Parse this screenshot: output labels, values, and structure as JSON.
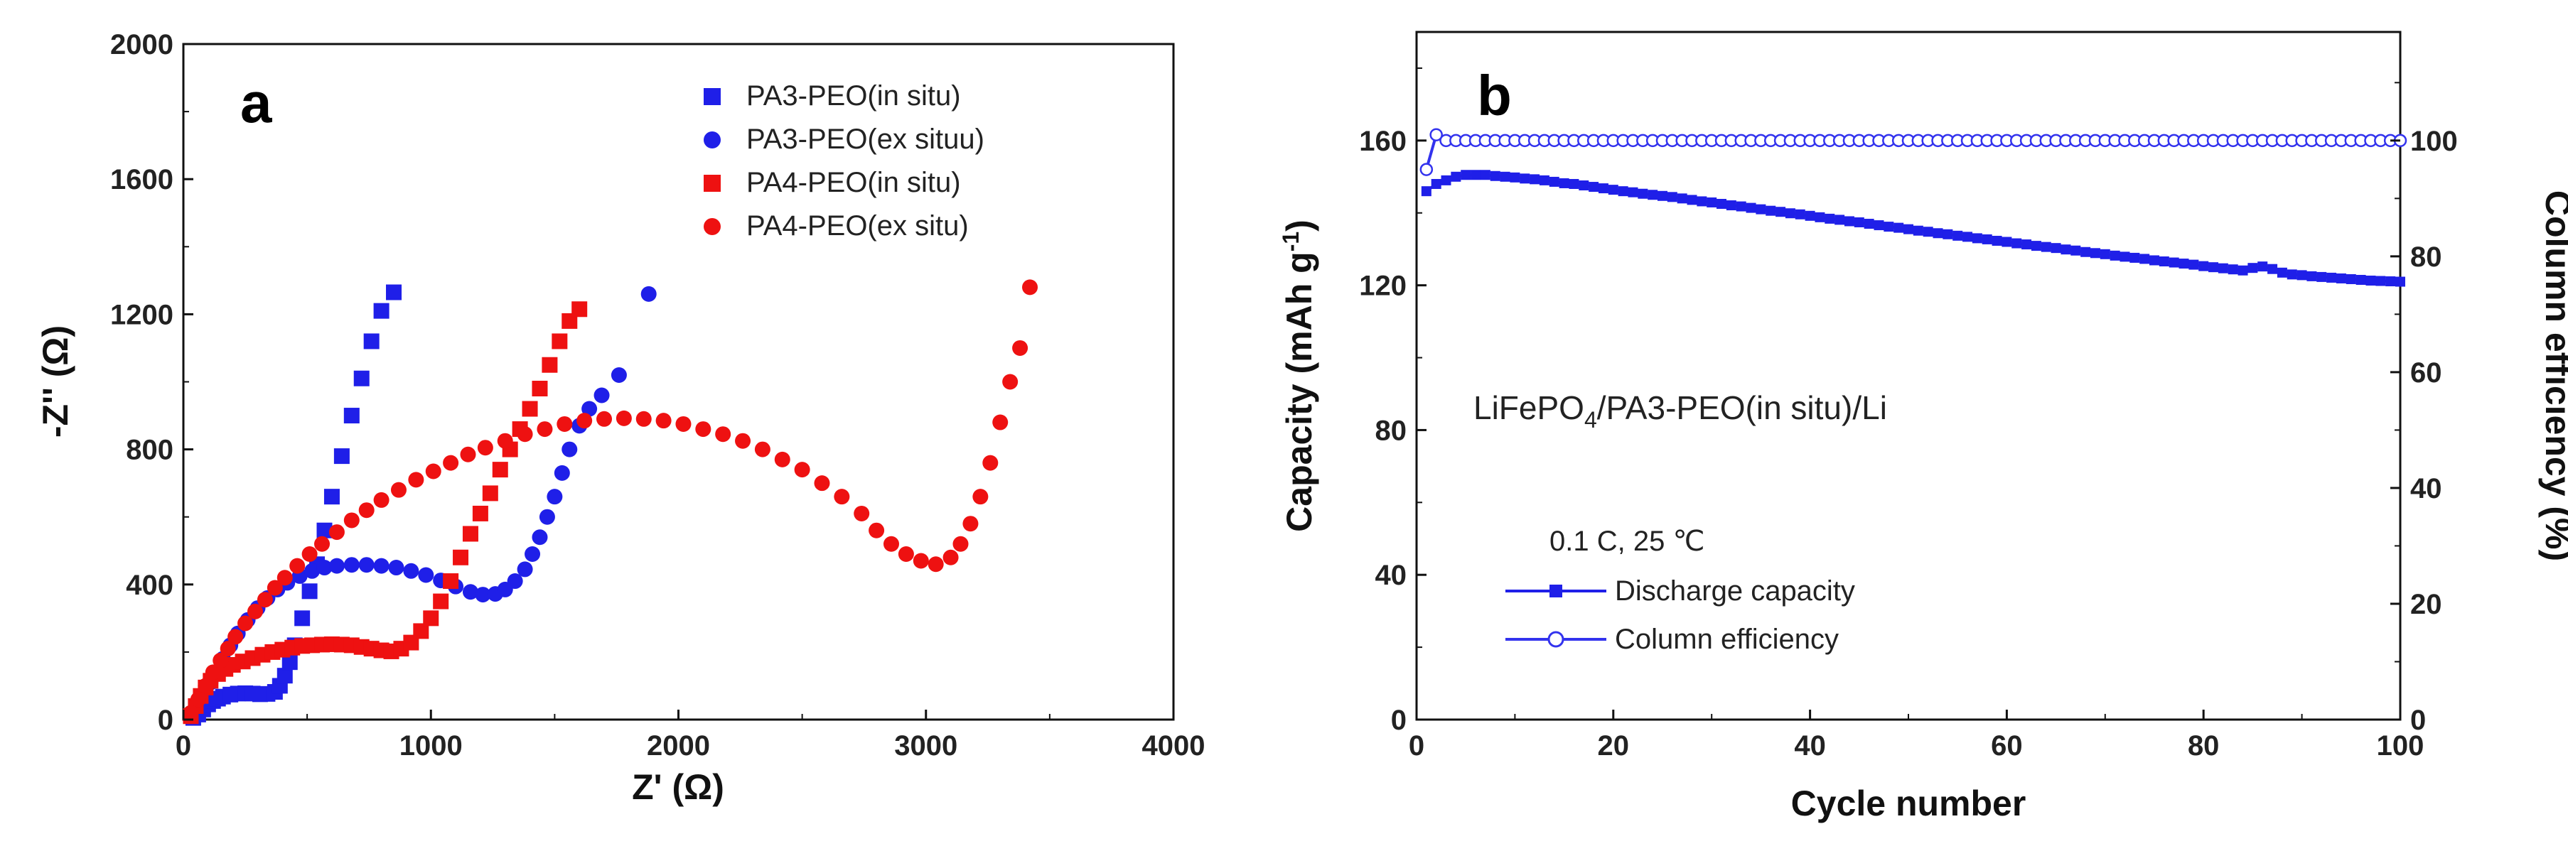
{
  "chart_data": [
    {
      "type": "scatter",
      "panel_label": "a",
      "xlabel": "Z' (Ω)",
      "ylabel": "-Z'' (Ω)",
      "xlim": [
        0,
        4000
      ],
      "ylim": [
        0,
        2000
      ],
      "xticks": [
        "0",
        "1000",
        "2000",
        "3000",
        "4000"
      ],
      "yticks": [
        "0",
        "400",
        "800",
        "1200",
        "1600",
        "2000"
      ],
      "legend_position": "top-right",
      "series": [
        {
          "name": "PA3-PEO(in situ)",
          "color": "#1f1fe8",
          "marker": "square",
          "x": [
            40,
            60,
            80,
            100,
            120,
            140,
            160,
            190,
            220,
            250,
            280,
            310,
            340,
            370,
            390,
            410,
            430,
            450,
            480,
            510,
            540,
            570,
            600,
            640,
            680,
            720,
            760,
            800,
            850
          ],
          "y": [
            5,
            15,
            30,
            45,
            55,
            62,
            68,
            74,
            77,
            78,
            77,
            75,
            76,
            82,
            100,
            130,
            170,
            220,
            300,
            380,
            460,
            560,
            660,
            780,
            900,
            1010,
            1120,
            1210,
            1265
          ]
        },
        {
          "name": "PA3-PEO(ex situu)",
          "color": "#1f1fe8",
          "marker": "circle",
          "x": [
            50,
            70,
            90,
            110,
            130,
            160,
            190,
            220,
            260,
            300,
            340,
            380,
            420,
            470,
            520,
            570,
            620,
            680,
            740,
            800,
            860,
            920,
            980,
            1040,
            1100,
            1160,
            1210,
            1260,
            1300,
            1340,
            1380,
            1410,
            1440,
            1470,
            1500,
            1530,
            1560,
            1600,
            1640,
            1690,
            1760,
            1880
          ],
          "y": [
            20,
            50,
            80,
            110,
            140,
            180,
            220,
            255,
            295,
            330,
            360,
            385,
            405,
            425,
            440,
            450,
            455,
            458,
            458,
            455,
            450,
            440,
            428,
            412,
            394,
            378,
            370,
            372,
            385,
            410,
            445,
            490,
            540,
            600,
            660,
            730,
            800,
            870,
            920,
            960,
            1020,
            1260
          ]
        },
        {
          "name": "PA4-PEO(in situ)",
          "color": "#ee1111",
          "marker": "square",
          "x": [
            30,
            50,
            70,
            90,
            110,
            140,
            170,
            200,
            240,
            280,
            320,
            360,
            400,
            440,
            480,
            520,
            560,
            600,
            640,
            680,
            720,
            760,
            800,
            840,
            880,
            920,
            960,
            1000,
            1040,
            1080,
            1120,
            1160,
            1200,
            1240,
            1280,
            1320,
            1360,
            1400,
            1440,
            1480,
            1520,
            1560,
            1600
          ],
          "y": [
            10,
            40,
            70,
            95,
            115,
            135,
            150,
            162,
            172,
            182,
            192,
            200,
            207,
            213,
            218,
            220,
            222,
            223,
            222,
            220,
            215,
            210,
            205,
            202,
            210,
            228,
            262,
            300,
            350,
            410,
            480,
            550,
            610,
            670,
            740,
            800,
            860,
            920,
            980,
            1050,
            1120,
            1180,
            1215
          ]
        },
        {
          "name": "PA4-PEO(ex situ)",
          "color": "#ee1111",
          "marker": "circle",
          "x": [
            30,
            60,
            90,
            120,
            150,
            180,
            210,
            250,
            290,
            330,
            370,
            410,
            460,
            510,
            560,
            620,
            680,
            740,
            800,
            870,
            940,
            1010,
            1080,
            1150,
            1220,
            1300,
            1380,
            1460,
            1540,
            1620,
            1700,
            1780,
            1860,
            1940,
            2020,
            2100,
            2180,
            2260,
            2340,
            2420,
            2500,
            2580,
            2660,
            2740,
            2800,
            2860,
            2920,
            2980,
            3040,
            3100,
            3140,
            3180,
            3220,
            3260,
            3300,
            3340,
            3380,
            3420
          ],
          "y": [
            20,
            60,
            100,
            140,
            175,
            210,
            245,
            285,
            320,
            355,
            390,
            420,
            455,
            490,
            520,
            555,
            590,
            620,
            650,
            680,
            710,
            735,
            760,
            785,
            805,
            825,
            845,
            860,
            875,
            885,
            890,
            892,
            890,
            885,
            875,
            860,
            845,
            825,
            800,
            770,
            740,
            700,
            660,
            610,
            560,
            520,
            490,
            470,
            460,
            480,
            520,
            580,
            660,
            760,
            880,
            1000,
            1100,
            1280
          ]
        }
      ]
    },
    {
      "type": "line",
      "panel_label": "b",
      "xlabel": "Cycle number",
      "ylabel": "Capacity (mAh g-1)",
      "ylabel_parts": [
        "Capacity (mAh g",
        "-1",
        ")"
      ],
      "y2label": "Column efficiency (%)",
      "xlim": [
        0,
        100
      ],
      "ylim": [
        0,
        190
      ],
      "y2lim": [
        0,
        118.75
      ],
      "xticks": [
        "0",
        "20",
        "40",
        "60",
        "80",
        "100"
      ],
      "yticks": [
        "0",
        "40",
        "80",
        "120",
        "160"
      ],
      "y2ticks": [
        "0",
        "20",
        "40",
        "60",
        "80",
        "100"
      ],
      "annotation": "LiFePO4/PA3-PEO(in situ)/Li",
      "annotation_parts": [
        "LiFePO",
        "4",
        "/PA3-PEO(in situ)/Li"
      ],
      "condition": "0.1 C, 25 ℃",
      "legend_position": "bottom-left",
      "series": [
        {
          "name": "Discharge capacity",
          "color": "#1f1fe8",
          "marker": "filled-square",
          "axis": "left",
          "x": [
            1,
            2,
            3,
            4,
            5,
            6,
            7,
            8,
            9,
            10,
            11,
            12,
            13,
            14,
            15,
            16,
            17,
            18,
            19,
            20,
            21,
            22,
            23,
            24,
            25,
            26,
            27,
            28,
            29,
            30,
            31,
            32,
            33,
            34,
            35,
            36,
            37,
            38,
            39,
            40,
            41,
            42,
            43,
            44,
            45,
            46,
            47,
            48,
            49,
            50,
            51,
            52,
            53,
            54,
            55,
            56,
            57,
            58,
            59,
            60,
            61,
            62,
            63,
            64,
            65,
            66,
            67,
            68,
            69,
            70,
            71,
            72,
            73,
            74,
            75,
            76,
            77,
            78,
            79,
            80,
            81,
            82,
            83,
            84,
            85,
            86,
            87,
            88,
            89,
            90,
            91,
            92,
            93,
            94,
            95,
            96,
            97,
            98,
            99,
            100
          ],
          "y": [
            146,
            148,
            149,
            150,
            150.5,
            150.5,
            150.5,
            150.2,
            150,
            149.8,
            149.5,
            149.3,
            149,
            148.6,
            148.2,
            148,
            147.6,
            147.2,
            146.8,
            146.4,
            146,
            145.7,
            145.3,
            145,
            144.7,
            144.4,
            144,
            143.6,
            143.2,
            142.9,
            142.5,
            142.1,
            141.8,
            141.4,
            141,
            140.6,
            140.3,
            139.9,
            139.6,
            139.2,
            138.8,
            138.4,
            138.1,
            137.7,
            137.4,
            137,
            136.6,
            136.2,
            135.9,
            135.5,
            135.1,
            134.8,
            134.4,
            134.1,
            133.7,
            133.4,
            133,
            132.7,
            132.3,
            132,
            131.6,
            131.3,
            130.9,
            130.6,
            130.3,
            129.9,
            129.6,
            129.2,
            128.9,
            128.6,
            128.2,
            127.9,
            127.6,
            127.3,
            126.9,
            126.6,
            126.3,
            126,
            125.7,
            125.3,
            125,
            124.7,
            124.4,
            124.1,
            124.8,
            125.2,
            124.5,
            123.5,
            123,
            122.8,
            122.5,
            122.3,
            122.1,
            121.9,
            121.7,
            121.5,
            121.3,
            121.2,
            121.1,
            121
          ]
        },
        {
          "name": "Column efficiency",
          "color": "#3333ee",
          "marker": "open-circle",
          "axis": "right",
          "x": [
            1,
            2,
            3,
            4,
            5,
            6,
            7,
            8,
            9,
            10,
            11,
            12,
            13,
            14,
            15,
            16,
            17,
            18,
            19,
            20,
            21,
            22,
            23,
            24,
            25,
            26,
            27,
            28,
            29,
            30,
            31,
            32,
            33,
            34,
            35,
            36,
            37,
            38,
            39,
            40,
            41,
            42,
            43,
            44,
            45,
            46,
            47,
            48,
            49,
            50,
            51,
            52,
            53,
            54,
            55,
            56,
            57,
            58,
            59,
            60,
            61,
            62,
            63,
            64,
            65,
            66,
            67,
            68,
            69,
            70,
            71,
            72,
            73,
            74,
            75,
            76,
            77,
            78,
            79,
            80,
            81,
            82,
            83,
            84,
            85,
            86,
            87,
            88,
            89,
            90,
            91,
            92,
            93,
            94,
            95,
            96,
            97,
            98,
            99,
            100
          ],
          "y": [
            95,
            101,
            100,
            100,
            100,
            100,
            100,
            100,
            100,
            100,
            100,
            100,
            100,
            100,
            100,
            100,
            100,
            100,
            100,
            100,
            100,
            100,
            100,
            100,
            100,
            100,
            100,
            100,
            100,
            100,
            100,
            100,
            100,
            100,
            100,
            100,
            100,
            100,
            100,
            100,
            100,
            100,
            100,
            100,
            100,
            100,
            100,
            100,
            100,
            100,
            100,
            100,
            100,
            100,
            100,
            100,
            100,
            100,
            100,
            100,
            100,
            100,
            100,
            100,
            100,
            100,
            100,
            100,
            100,
            100,
            100,
            100,
            100,
            100,
            100,
            100,
            100,
            100,
            100,
            100,
            100,
            100,
            100,
            100,
            100,
            100,
            100,
            100,
            100,
            100,
            100,
            100,
            100,
            100,
            100,
            100,
            100,
            100,
            100,
            100
          ]
        }
      ]
    }
  ]
}
